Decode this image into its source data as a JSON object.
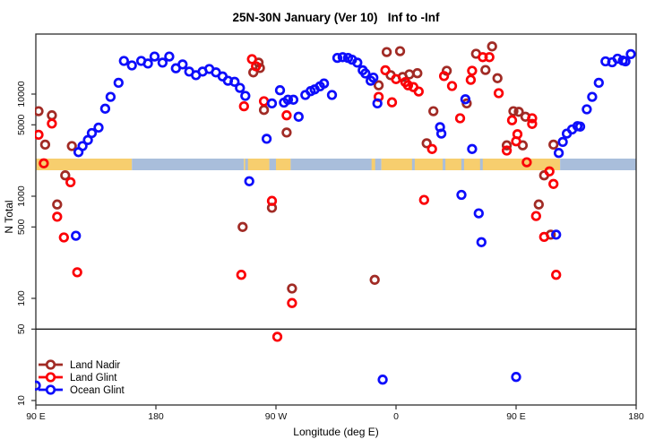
{
  "title": "25N-30N January (Ver 10)   Inf to -Inf",
  "chart_data": {
    "type": "scatter",
    "title": "25N-30N January (Ver 10)   Inf to -Inf",
    "xlabel": "Longitude (deg E)",
    "ylabel": "N Total",
    "x_axis": {
      "range_degrees": [
        90,
        540
      ],
      "tick_degrees": [
        90,
        180,
        270,
        360,
        450,
        540
      ],
      "tick_labels": [
        "90 E",
        "180",
        "90 W",
        "0",
        "90 E",
        "180"
      ]
    },
    "y_axis": {
      "scale": "log",
      "tick_values": [
        10,
        50,
        100,
        500,
        1000,
        5000,
        10000
      ],
      "tick_labels": [
        "10",
        "50",
        "100",
        "500",
        "1000",
        "5000",
        "10000"
      ],
      "range": [
        10,
        40000
      ]
    },
    "threshold_line_n": 50,
    "grid": "off",
    "legend_position": "bottom-left",
    "map_band": {
      "center_n": 2000,
      "land_color": "#F7CE6E",
      "ocean_color": "#A9BEDB",
      "segments": [
        {
          "from": 90,
          "to": 162,
          "type": "land"
        },
        {
          "from": 162,
          "to": 246,
          "type": "ocean"
        },
        {
          "from": 246,
          "to": 265,
          "type": "land"
        },
        {
          "from": 265,
          "to": 270,
          "type": "ocean"
        },
        {
          "from": 270,
          "to": 281,
          "type": "land"
        },
        {
          "from": 281,
          "to": 349,
          "type": "ocean"
        },
        {
          "from": 349,
          "to": 483,
          "type": "land"
        },
        {
          "from": 483,
          "to": 540,
          "type": "ocean"
        }
      ],
      "ocean_slivers_deg": [
        248,
        373,
        396,
        410,
        424
      ],
      "land_slivers_deg": [
        343
      ]
    },
    "series": [
      {
        "name": "Land Nadir",
        "color": "#A12B25",
        "points": [
          [
            92,
            6800
          ],
          [
            102,
            6200
          ],
          [
            97,
            3200
          ],
          [
            117,
            3100
          ],
          [
            112,
            1600
          ],
          [
            106,
            830
          ],
          [
            245,
            500
          ],
          [
            282,
            125
          ],
          [
            257,
            20300
          ],
          [
            258,
            18000
          ],
          [
            253,
            16300
          ],
          [
            261,
            7000
          ],
          [
            278,
            4200
          ],
          [
            267,
            770
          ],
          [
            353,
            25800
          ],
          [
            363,
            26300
          ],
          [
            347,
            12200
          ],
          [
            356,
            15300
          ],
          [
            365,
            14700
          ],
          [
            370,
            15600
          ],
          [
            376,
            16000
          ],
          [
            388,
            6800
          ],
          [
            383,
            3300
          ],
          [
            344,
            152
          ],
          [
            432,
            29300
          ],
          [
            420,
            24800
          ],
          [
            427,
            17200
          ],
          [
            398,
            16900
          ],
          [
            436,
            14300
          ],
          [
            413,
            8100
          ],
          [
            448,
            6800
          ],
          [
            452,
            6700
          ],
          [
            457,
            6000
          ],
          [
            443,
            3150
          ],
          [
            455,
            3150
          ],
          [
            467,
            830
          ],
          [
            471,
            1600
          ],
          [
            478,
            3200
          ],
          [
            476,
            420
          ]
        ]
      },
      {
        "name": "Land Glint",
        "color": "#FB0006",
        "points": [
          [
            92,
            4000
          ],
          [
            102,
            5150
          ],
          [
            96,
            2100
          ],
          [
            116,
            1370
          ],
          [
            106,
            630
          ],
          [
            111,
            395
          ],
          [
            121,
            180
          ],
          [
            244,
            170
          ],
          [
            282,
            90
          ],
          [
            271,
            42
          ],
          [
            252,
            22000
          ],
          [
            255,
            18700
          ],
          [
            246,
            7600
          ],
          [
            261,
            8500
          ],
          [
            278,
            6200
          ],
          [
            267,
            900
          ],
          [
            352,
            17100
          ],
          [
            360,
            14000
          ],
          [
            367,
            13100
          ],
          [
            369,
            12200
          ],
          [
            373,
            11700
          ],
          [
            377,
            10600
          ],
          [
            347,
            9400
          ],
          [
            357,
            8300
          ],
          [
            387,
            2900
          ],
          [
            381,
            920
          ],
          [
            396,
            15000
          ],
          [
            402,
            12000
          ],
          [
            408,
            5800
          ],
          [
            417,
            16900
          ],
          [
            416,
            13800
          ],
          [
            425,
            23000
          ],
          [
            430,
            23000
          ],
          [
            437,
            10200
          ],
          [
            447,
            5550
          ],
          [
            462,
            5800
          ],
          [
            462,
            5100
          ],
          [
            451,
            4050
          ],
          [
            450,
            3450
          ],
          [
            443,
            2800
          ],
          [
            458,
            2150
          ],
          [
            465,
            640
          ],
          [
            471,
            400
          ],
          [
            480,
            170
          ],
          [
            475,
            1750
          ],
          [
            478,
            1320
          ]
        ]
      },
      {
        "name": "Ocean Glint",
        "color": "#0D0DFB",
        "points": [
          [
            90,
            14
          ],
          [
            120,
            410
          ],
          [
            122,
            2700
          ],
          [
            125,
            3100
          ],
          [
            129,
            3550
          ],
          [
            132,
            4150
          ],
          [
            137,
            4700
          ],
          [
            142,
            7200
          ],
          [
            146,
            9400
          ],
          [
            152,
            12900
          ],
          [
            156,
            21100
          ],
          [
            162,
            19100
          ],
          [
            169,
            21100
          ],
          [
            174,
            19900
          ],
          [
            179,
            23300
          ],
          [
            185,
            20300
          ],
          [
            190,
            23300
          ],
          [
            195,
            17900
          ],
          [
            200,
            19500
          ],
          [
            205,
            16600
          ],
          [
            210,
            15300
          ],
          [
            215,
            16600
          ],
          [
            220,
            17600
          ],
          [
            225,
            16300
          ],
          [
            230,
            14900
          ],
          [
            234,
            13500
          ],
          [
            239,
            13200
          ],
          [
            243,
            11500
          ],
          [
            247,
            9600
          ],
          [
            273,
            10900
          ],
          [
            267,
            8100
          ],
          [
            276,
            8250
          ],
          [
            279,
            8800
          ],
          [
            283,
            8800
          ],
          [
            287,
            6000
          ],
          [
            292,
            9800
          ],
          [
            296,
            10700
          ],
          [
            299,
            11100
          ],
          [
            303,
            11900
          ],
          [
            306,
            12700
          ],
          [
            312,
            9800
          ],
          [
            316,
            22600
          ],
          [
            320,
            23000
          ],
          [
            324,
            22600
          ],
          [
            327,
            21700
          ],
          [
            331,
            20300
          ],
          [
            335,
            17100
          ],
          [
            337,
            15900
          ],
          [
            341,
            13500
          ],
          [
            343,
            14500
          ],
          [
            346,
            8100
          ],
          [
            263,
            3650
          ],
          [
            250,
            1400
          ],
          [
            393,
            4750
          ],
          [
            394,
            4100
          ],
          [
            412,
            8900
          ],
          [
            417,
            2900
          ],
          [
            409,
            1030
          ],
          [
            422,
            680
          ],
          [
            424,
            355
          ],
          [
            450,
            17
          ],
          [
            350,
            16
          ],
          [
            480,
            420
          ],
          [
            482,
            2650
          ],
          [
            485,
            3400
          ],
          [
            488,
            4100
          ],
          [
            492,
            4500
          ],
          [
            496,
            4850
          ],
          [
            498,
            4800
          ],
          [
            503,
            7100
          ],
          [
            507,
            9400
          ],
          [
            512,
            12900
          ],
          [
            517,
            20900
          ],
          [
            522,
            20500
          ],
          [
            526,
            22200
          ],
          [
            530,
            21300
          ],
          [
            532,
            20900
          ],
          [
            536,
            24600
          ]
        ]
      }
    ]
  }
}
